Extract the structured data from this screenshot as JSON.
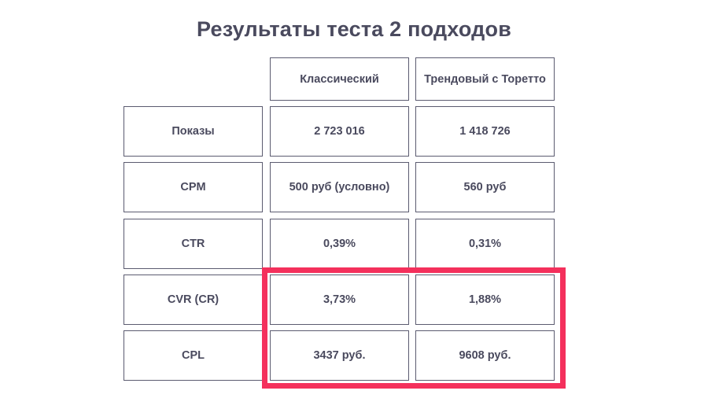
{
  "title": "Результаты теста 2 подходов",
  "columns": [
    "Классический",
    "Трендовый с Торетто"
  ],
  "rows": [
    {
      "label": "Показы",
      "values": [
        "2 723 016",
        "1 418 726"
      ]
    },
    {
      "label": "CPM",
      "values": [
        "500 руб (условно)",
        "560 руб"
      ]
    },
    {
      "label": "CTR",
      "values": [
        "0,39%",
        "0,31%"
      ]
    },
    {
      "label": "CVR (CR)",
      "values": [
        "3,73%",
        "1,88%"
      ]
    },
    {
      "label": "CPL",
      "values": [
        "3437 руб.",
        "9608 руб."
      ]
    }
  ],
  "highlight_color": "#f4305c"
}
